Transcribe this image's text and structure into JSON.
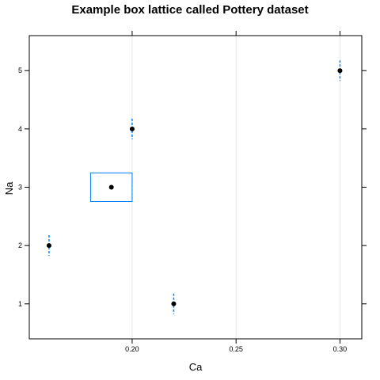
{
  "chart_data": {
    "type": "box",
    "title": "Example box lattice called Pottery dataset",
    "xlabel": "Ca",
    "ylabel": "Na",
    "xlim": [
      0.1505,
      0.3105
    ],
    "ylim": [
      0.4,
      5.6
    ],
    "x_ticks": [
      0.2,
      0.25,
      0.3
    ],
    "x_tick_labels": [
      "0.20",
      "0.25",
      "0.30"
    ],
    "y_ticks": [
      1,
      2,
      3,
      4,
      5
    ],
    "y_tick_labels": [
      "1",
      "2",
      "3",
      "4",
      "5"
    ],
    "grid": "vertical",
    "colors": {
      "box": "#0080ff",
      "median": "#000000",
      "grid": "#e6e6e6",
      "frame": "#000000"
    },
    "boxes": [
      {
        "category": "1",
        "min": 0.22,
        "q1": 0.22,
        "median": 0.22,
        "q3": 0.22,
        "max": 0.22
      },
      {
        "category": "2",
        "min": 0.16,
        "q1": 0.16,
        "median": 0.16,
        "q3": 0.16,
        "max": 0.16
      },
      {
        "category": "3",
        "min": 0.18,
        "q1": 0.18,
        "median": 0.19,
        "q3": 0.2,
        "max": 0.2
      },
      {
        "category": "4",
        "min": 0.2,
        "q1": 0.2,
        "median": 0.2,
        "q3": 0.2,
        "max": 0.2
      },
      {
        "category": "5",
        "min": 0.3,
        "q1": 0.3,
        "median": 0.3,
        "q3": 0.3,
        "max": 0.3
      }
    ]
  }
}
